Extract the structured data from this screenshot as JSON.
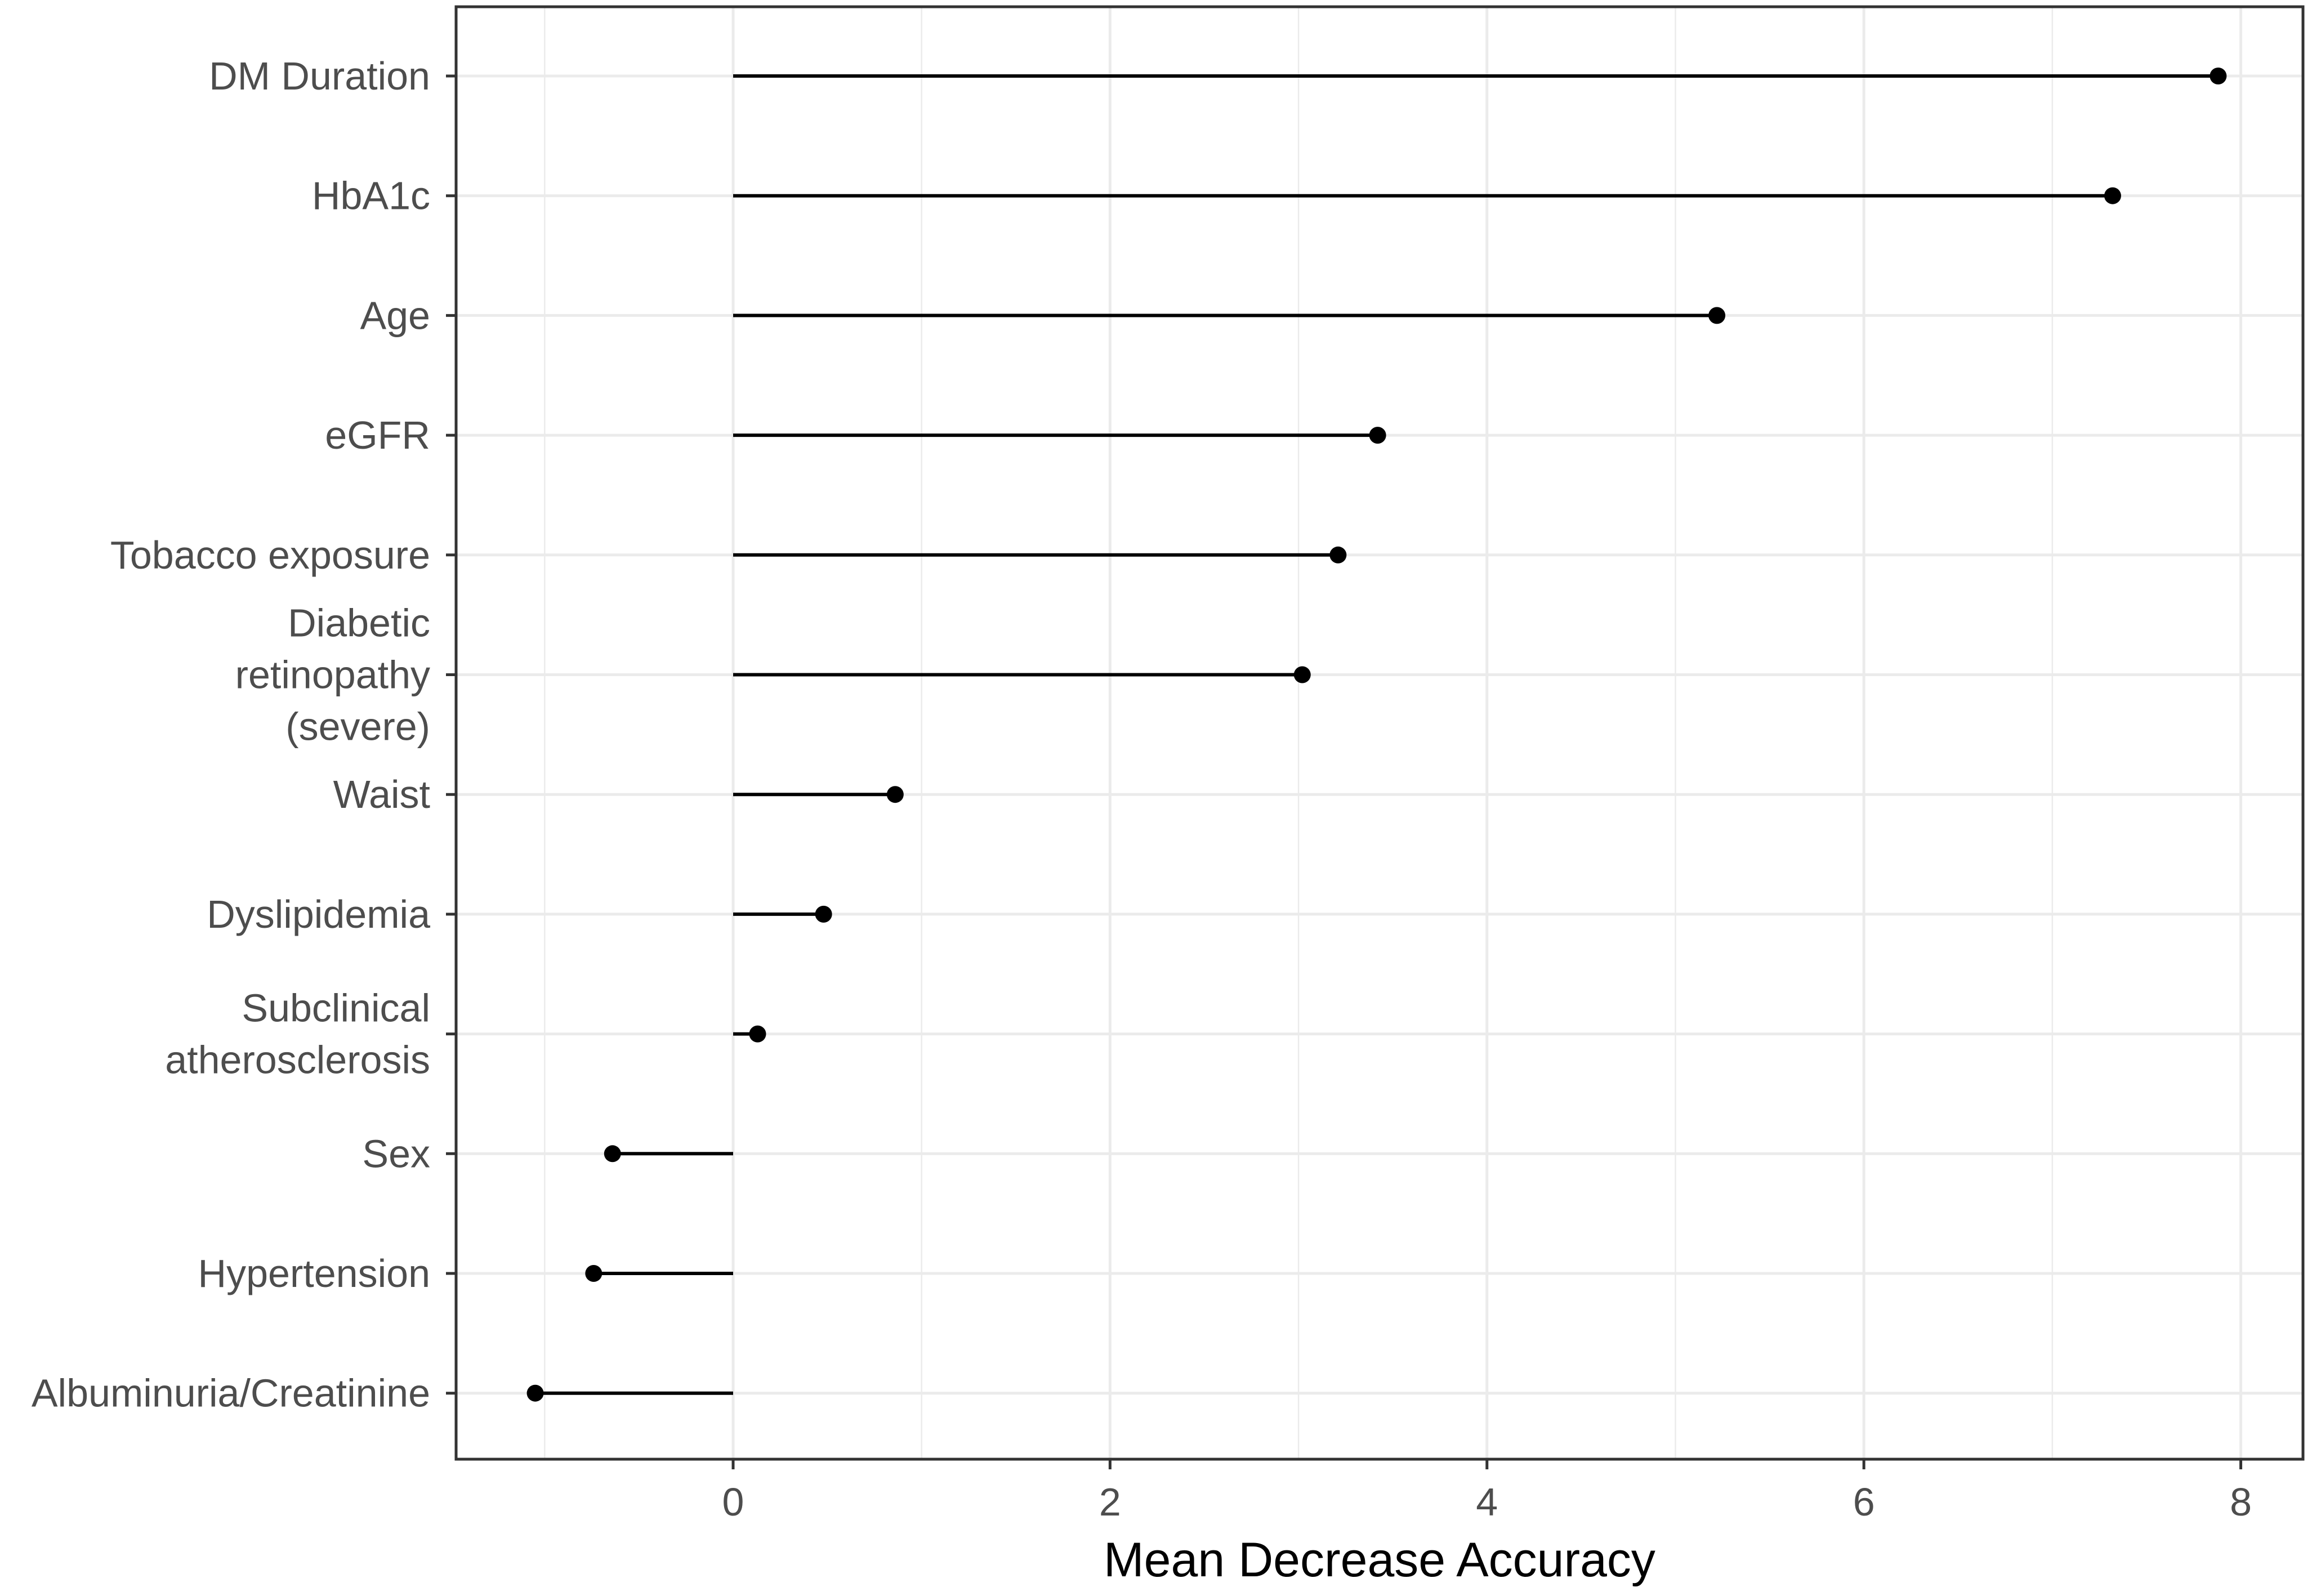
{
  "chart_data": {
    "type": "lollipop",
    "orientation": "horizontal",
    "xlabel": "Mean Decrease Accuracy",
    "xlim": [
      -1.47,
      8.33
    ],
    "x_ticks": [
      "0",
      "2",
      "4",
      "6",
      "8"
    ],
    "grid": true,
    "points": [
      {
        "label": "DM Duration",
        "value": 7.88
      },
      {
        "label": "HbA1c",
        "value": 7.32
      },
      {
        "label": "Age",
        "value": 5.22
      },
      {
        "label": "eGFR",
        "value": 3.42
      },
      {
        "label": "Tobacco exposure",
        "value": 3.21
      },
      {
        "label": "Diabetic retinopathy (severe)",
        "value": 3.02
      },
      {
        "label": "Waist",
        "value": 0.86
      },
      {
        "label": "Dyslipidemia",
        "value": 0.48
      },
      {
        "label": "Subclinical atherosclerosis",
        "value": 0.13
      },
      {
        "label": "Sex",
        "value": -0.64
      },
      {
        "label": "Hypertension",
        "value": -0.74
      },
      {
        "label": "Albuminuria/Creatinine",
        "value": -1.05
      }
    ],
    "colors": {
      "marker": "#000000",
      "grid": "#ebebeb",
      "axis_text": "#4d4d4d",
      "panel_border": "#333333"
    }
  }
}
